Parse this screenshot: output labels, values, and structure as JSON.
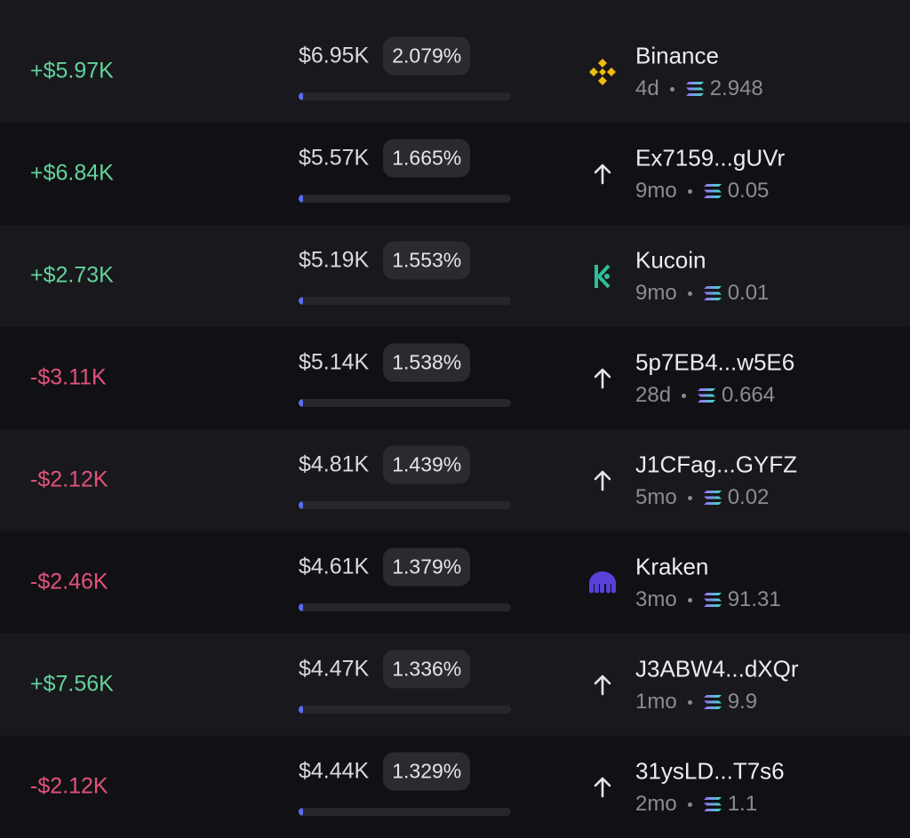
{
  "rows": [
    {
      "pnl": "+$5.97K",
      "value": "$6.95K",
      "percent": "2.079%",
      "name": "Binance",
      "age": "4d",
      "sol": "2.948"
    },
    {
      "pnl": "+$6.84K",
      "value": "$5.57K",
      "percent": "1.665%",
      "name": "Ex7159...gUVr",
      "age": "9mo",
      "sol": "0.05"
    },
    {
      "pnl": "+$2.73K",
      "value": "$5.19K",
      "percent": "1.553%",
      "name": "Kucoin",
      "age": "9mo",
      "sol": "0.01"
    },
    {
      "pnl": "-$3.11K",
      "value": "$5.14K",
      "percent": "1.538%",
      "name": "5p7EB4...w5E6",
      "age": "28d",
      "sol": "0.664"
    },
    {
      "pnl": "-$2.12K",
      "value": "$4.81K",
      "percent": "1.439%",
      "name": "J1CFag...GYFZ",
      "age": "5mo",
      "sol": "0.02"
    },
    {
      "pnl": "-$2.46K",
      "value": "$4.61K",
      "percent": "1.379%",
      "name": "Kraken",
      "age": "3mo",
      "sol": "91.31"
    },
    {
      "pnl": "+$7.56K",
      "value": "$4.47K",
      "percent": "1.336%",
      "name": "J3ABW4...dXQr",
      "age": "1mo",
      "sol": "9.9"
    },
    {
      "pnl": "-$2.12K",
      "value": "$4.44K",
      "percent": "1.329%",
      "name": "31ysLD...T7s6",
      "age": "2mo",
      "sol": "1.1"
    }
  ]
}
